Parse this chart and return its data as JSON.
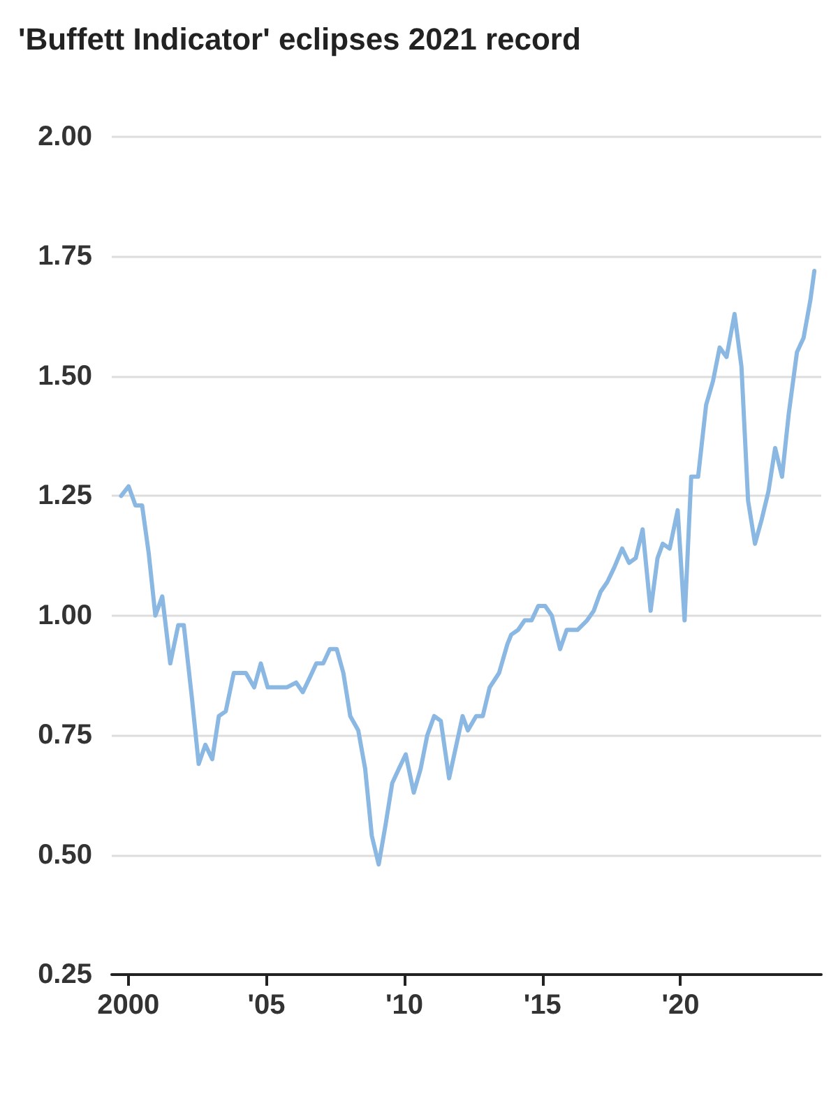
{
  "chart_data": {
    "type": "line",
    "title": "'Buffett Indicator' eclipses 2021 record",
    "xlim": [
      1999.4,
      2025.1
    ],
    "xticks": [
      {
        "value": 2000,
        "label": "2000"
      },
      {
        "value": 2005,
        "label": "'05"
      },
      {
        "value": 2010,
        "label": "'10"
      },
      {
        "value": 2015,
        "label": "'15"
      },
      {
        "value": 2020,
        "label": "'20"
      }
    ],
    "ylim": [
      0.25,
      2.0
    ],
    "yticks": [
      {
        "value": 0.25,
        "label": "0.25"
      },
      {
        "value": 0.5,
        "label": "0.50"
      },
      {
        "value": 0.75,
        "label": "0.75"
      },
      {
        "value": 1.0,
        "label": "1.00"
      },
      {
        "value": 1.25,
        "label": "1.25"
      },
      {
        "value": 1.5,
        "label": "1.50"
      },
      {
        "value": 1.75,
        "label": "1.75"
      },
      {
        "value": 2.0,
        "label": "2.00"
      }
    ],
    "grid": "y",
    "marker": "none",
    "line_style": "solid",
    "series": [
      {
        "color": "#8ab8e2",
        "x": [
          1999.74,
          2000.01,
          2000.26,
          2000.5,
          2000.74,
          2000.98,
          2001.23,
          2001.52,
          2001.81,
          2002.01,
          2002.3,
          2002.55,
          2002.79,
          2003.04,
          2003.28,
          2003.53,
          2003.82,
          2004.26,
          2004.56,
          2004.8,
          2005.05,
          2005.34,
          2005.74,
          2006.08,
          2006.32,
          2006.57,
          2006.81,
          2007.06,
          2007.3,
          2007.55,
          2007.79,
          2008.04,
          2008.33,
          2008.58,
          2008.82,
          2009.07,
          2009.31,
          2009.56,
          2009.8,
          2010.05,
          2010.34,
          2010.59,
          2010.83,
          2011.08,
          2011.32,
          2011.62,
          2012.11,
          2012.3,
          2012.6,
          2012.84,
          2013.09,
          2013.43,
          2013.73,
          2013.87,
          2014.12,
          2014.36,
          2014.61,
          2014.85,
          2015.1,
          2015.34,
          2015.64,
          2015.88,
          2016.27,
          2016.62,
          2016.86,
          2017.11,
          2017.35,
          2017.6,
          2017.89,
          2018.14,
          2018.38,
          2018.63,
          2018.92,
          2019.17,
          2019.36,
          2019.61,
          2019.9,
          2020.15,
          2020.39,
          2020.64,
          2020.93,
          2021.18,
          2021.42,
          2021.67,
          2021.96,
          2022.21,
          2022.45,
          2022.7,
          2022.94,
          2023.19,
          2023.43,
          2023.68,
          2023.92,
          2024.22,
          2024.46,
          2024.71,
          2024.85
        ],
        "values": [
          1.25,
          1.27,
          1.23,
          1.23,
          1.13,
          1.0,
          1.04,
          0.9,
          0.98,
          0.98,
          0.83,
          0.69,
          0.73,
          0.7,
          0.79,
          0.8,
          0.88,
          0.88,
          0.85,
          0.9,
          0.85,
          0.85,
          0.85,
          0.86,
          0.84,
          0.87,
          0.9,
          0.9,
          0.93,
          0.93,
          0.88,
          0.79,
          0.76,
          0.68,
          0.54,
          0.48,
          0.56,
          0.65,
          0.68,
          0.71,
          0.63,
          0.68,
          0.75,
          0.79,
          0.78,
          0.66,
          0.79,
          0.76,
          0.79,
          0.79,
          0.85,
          0.88,
          0.94,
          0.96,
          0.97,
          0.99,
          0.99,
          1.02,
          1.02,
          1.0,
          0.93,
          0.97,
          0.97,
          0.99,
          1.01,
          1.05,
          1.07,
          1.1,
          1.14,
          1.11,
          1.12,
          1.18,
          1.01,
          1.12,
          1.15,
          1.14,
          1.22,
          0.99,
          1.29,
          1.29,
          1.44,
          1.49,
          1.56,
          1.54,
          1.63,
          1.52,
          1.24,
          1.15,
          1.2,
          1.26,
          1.35,
          1.29,
          1.42,
          1.55,
          1.58,
          1.66,
          1.72
        ]
      }
    ]
  }
}
